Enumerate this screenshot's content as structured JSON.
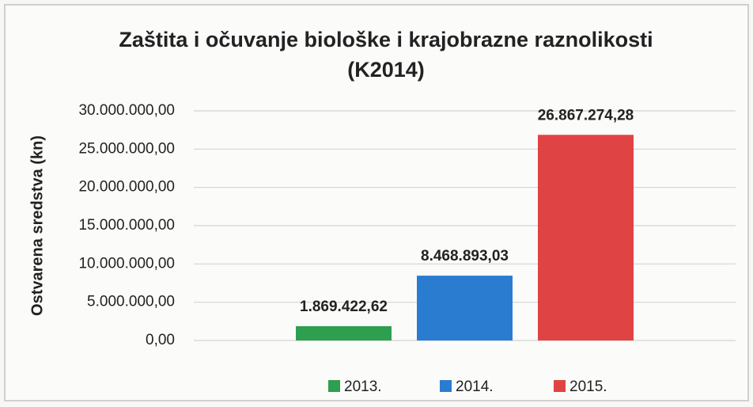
{
  "chart_data": {
    "type": "bar",
    "title": "Zaštita i očuvanje biološke i krajobrazne raznolikosti",
    "subtitle": "(K2014)",
    "y_label": "Ostvarena sredstva (kn)",
    "categories": [
      null
    ],
    "series": [
      {
        "name": "2013.",
        "color": "#2e9e4f",
        "values": [
          1869422.62
        ],
        "value_labels": [
          "1.869.422,62"
        ]
      },
      {
        "name": "2014.",
        "color": "#2a7cd0",
        "values": [
          8468893.03
        ],
        "value_labels": [
          "8.468.893,03"
        ]
      },
      {
        "name": "2015.",
        "color": "#e04343",
        "values": [
          26867274.28
        ],
        "value_labels": [
          "26.867.274,28"
        ]
      }
    ],
    "ylim": [
      0,
      30000000
    ],
    "yticks": [
      {
        "value": 0,
        "label": "0,00"
      },
      {
        "value": 5000000,
        "label": "5.000.000,00"
      },
      {
        "value": 10000000,
        "label": "10.000.000,00"
      },
      {
        "value": 15000000,
        "label": "15.000.000,00"
      },
      {
        "value": 20000000,
        "label": "20.000.000,00"
      },
      {
        "value": 25000000,
        "label": "25.000.000,00"
      },
      {
        "value": 30000000,
        "label": "30.000.000,00"
      }
    ],
    "grid": true,
    "legend": "bottom"
  }
}
